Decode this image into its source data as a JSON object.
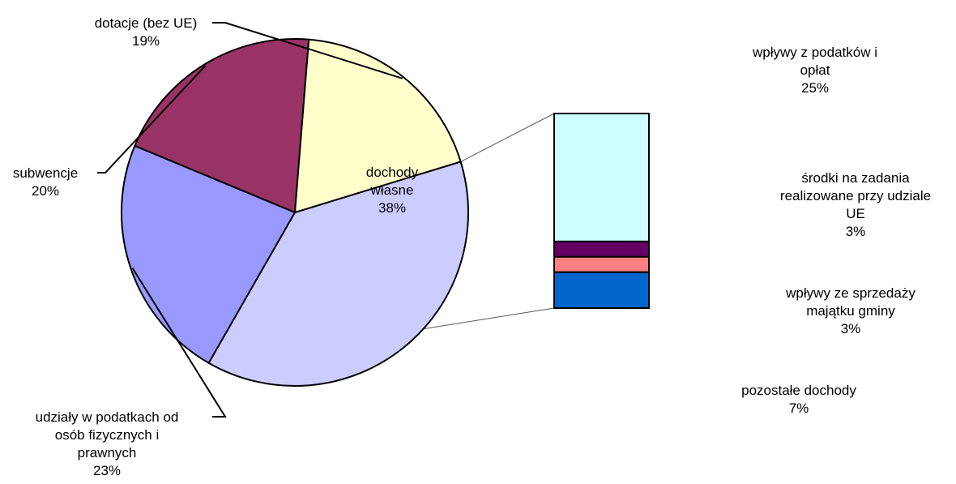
{
  "chart_data": {
    "type": "pie",
    "title": "",
    "slices": [
      {
        "name": "dochody własne",
        "label_lines": [
          "dochody",
          "własne"
        ],
        "percent": 38,
        "percent_label": "38%",
        "color": "#ccccff"
      },
      {
        "name": "udziały w podatkach od osób fizycznych i prawnych",
        "label_lines": [
          "udziały w podatkach od",
          "osób fizycznych i",
          "prawnych"
        ],
        "percent": 23,
        "percent_label": "23%",
        "color": "#9999ff"
      },
      {
        "name": "subwencje",
        "label_lines": [
          "subwencje"
        ],
        "percent": 20,
        "percent_label": "20%",
        "color": "#993366"
      },
      {
        "name": "dotacje (bez UE)",
        "label_lines": [
          "dotacje (bez UE)"
        ],
        "percent": 19,
        "percent_label": "19%",
        "color": "#ffffcc"
      }
    ],
    "breakdown_of": "dochody własne",
    "breakdown": [
      {
        "name": "wpływy z podatków i opłat",
        "label_lines": [
          "wpływy z podatków i",
          "opłat"
        ],
        "percent": 25,
        "percent_label": "25%",
        "color": "#ccffff"
      },
      {
        "name": "środki na zadania realizowane przy udziale UE",
        "label_lines": [
          "środki na zadania",
          "realizowane przy udziale",
          "UE"
        ],
        "percent": 3,
        "percent_label": "3%",
        "color": "#660066"
      },
      {
        "name": "wpływy ze sprzedaży majątku gminy",
        "label_lines": [
          "wpływy ze sprzedaży",
          "majątku gminy"
        ],
        "percent": 3,
        "percent_label": "3%",
        "color": "#ff8080"
      },
      {
        "name": "pozostałe dochody",
        "label_lines": [
          "pozostałe dochody"
        ],
        "percent": 7,
        "percent_label": "7%",
        "color": "#0066cc"
      }
    ]
  }
}
